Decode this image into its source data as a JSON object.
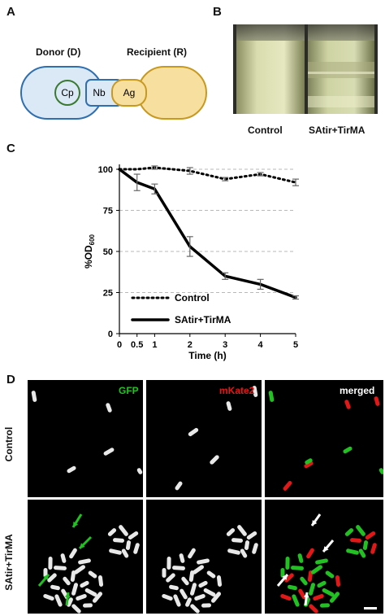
{
  "panels": {
    "a": "A",
    "b": "B",
    "c": "C",
    "d": "D"
  },
  "panelA": {
    "donor_label": "Donor (D)",
    "recipient_label": "Recipient (R)",
    "cp": "Cp",
    "nb": "Nb",
    "ag": "Ag",
    "colors": {
      "donor": "#2f6fb0",
      "donor_fill": "#dbe9f7",
      "recipient": "#c7991f",
      "recipient_fill": "#f7dfa0",
      "cp_ring": "#3a7a30"
    }
  },
  "panelB": {
    "labels": [
      "Control",
      "SAtir+TirMA"
    ]
  },
  "chart_data": {
    "type": "line",
    "x": [
      0,
      0.5,
      1,
      2,
      3,
      4,
      5
    ],
    "xlabel": "Time (h)",
    "ylabel": "%OD600",
    "ylabel_main": "%OD",
    "ylabel_sub": "600",
    "ylim": [
      0,
      100
    ],
    "yticks": [
      0,
      25,
      50,
      75,
      100
    ],
    "xticks": [
      "0",
      "0.5",
      "1",
      "2",
      "3",
      "4",
      "5"
    ],
    "grid": "horizontal dashed",
    "legend_position": "bottom-left",
    "series": [
      {
        "name": "Control",
        "style": "dotted",
        "values": [
          100,
          100,
          101,
          99,
          94,
          97,
          92
        ],
        "errors": [
          0,
          0,
          1,
          2,
          1,
          1,
          2
        ]
      },
      {
        "name": "SAtir+TirMA",
        "style": "solid",
        "values": [
          100,
          92,
          88,
          53,
          35,
          30,
          22
        ],
        "errors": [
          0,
          5,
          3,
          6,
          2,
          3,
          1
        ]
      }
    ]
  },
  "panelD": {
    "col_labels": {
      "gfp": "GFP",
      "mkate": "mKate2",
      "merged": "merged"
    },
    "row_labels": {
      "control": "Control",
      "treated": "SAtir+TirMA"
    },
    "colors": {
      "gfp": "#22c022",
      "mkate": "#e01818"
    }
  }
}
